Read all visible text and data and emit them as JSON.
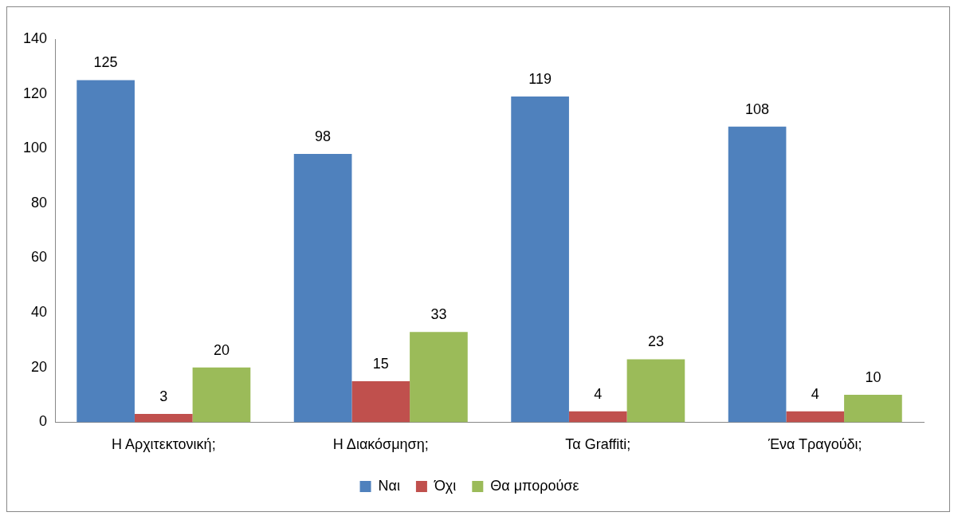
{
  "chart_data": {
    "type": "bar",
    "categories": [
      "Η Αρχιτεκτονική;",
      "Η Διακόσμηση;",
      "Τα Graffiti;",
      "Ένα Τραγούδι;"
    ],
    "series": [
      {
        "name": "Ναι",
        "color": "#4f81bd",
        "values": [
          125,
          98,
          119,
          108
        ]
      },
      {
        "name": "Όχι",
        "color": "#c0504d",
        "values": [
          3,
          15,
          4,
          4
        ]
      },
      {
        "name": "Θα μπορούσε",
        "color": "#9bbb59",
        "values": [
          20,
          33,
          23,
          10
        ]
      }
    ],
    "ylim": [
      0,
      140
    ],
    "yticks": [
      0,
      20,
      40,
      60,
      80,
      100,
      120,
      140
    ],
    "grid": false,
    "legend": "bottom",
    "data_labels": true
  }
}
